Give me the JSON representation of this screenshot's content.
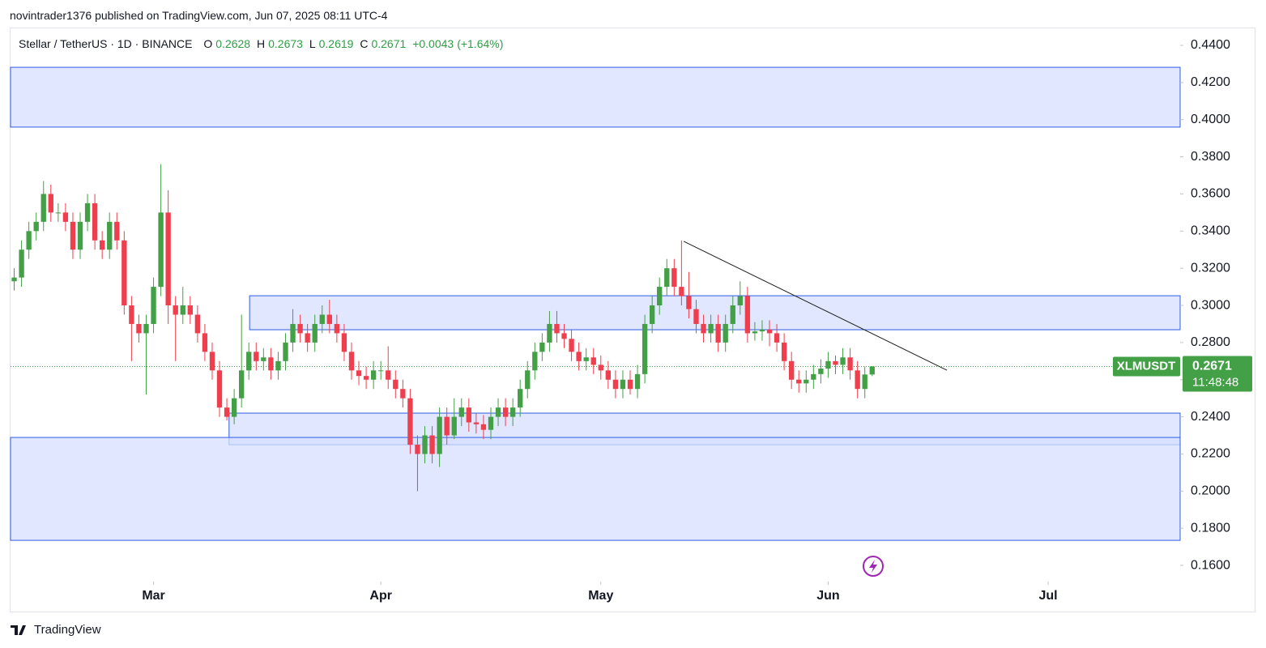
{
  "published": "novintrader1376 published on TradingView.com, Jun 07, 2025 08:11 UTC-4",
  "footer_brand": "TradingView",
  "chart_data": {
    "type": "candlestick",
    "title": "Stellar / TetherUS · 1D · BINANCE",
    "ohlc_labels": [
      "O",
      "H",
      "L",
      "C"
    ],
    "change": "+0.0043",
    "change_pct": "(+1.64%)",
    "symbol": "XLMUSDT",
    "countdown": "11:48:48",
    "colors": {
      "up": "#43a047",
      "down": "#ef3e4e",
      "zone_fill": "#d6dfff",
      "zone_stroke": "#2f5ce6",
      "line": "#1e1e1e"
    },
    "xlim": [
      -0.5,
      159
    ],
    "xticks": [
      {
        "value": 19,
        "label": "Mar"
      },
      {
        "value": 50,
        "label": "Apr"
      },
      {
        "value": 80,
        "label": "May"
      },
      {
        "value": 111,
        "label": "Jun"
      },
      {
        "value": 141,
        "label": "Jul"
      }
    ],
    "ylim": [
      0.1513,
      0.4496
    ],
    "yticks": [
      {
        "value": 0.16,
        "label": "0.1600"
      },
      {
        "value": 0.18,
        "label": "0.1800"
      },
      {
        "value": 0.2,
        "label": "0.2000"
      },
      {
        "value": 0.22,
        "label": "0.2200"
      },
      {
        "value": 0.24,
        "label": "0.2400"
      },
      {
        "value": 0.26,
        "label": "0.2600"
      },
      {
        "value": 0.28,
        "label": "0.2800"
      },
      {
        "value": 0.3,
        "label": "0.3000"
      },
      {
        "value": 0.32,
        "label": "0.3200"
      },
      {
        "value": 0.34,
        "label": "0.3400"
      },
      {
        "value": 0.36,
        "label": "0.3600"
      },
      {
        "value": 0.38,
        "label": "0.3800"
      },
      {
        "value": 0.4,
        "label": "0.4000"
      },
      {
        "value": 0.42,
        "label": "0.4200"
      },
      {
        "value": 0.44,
        "label": "0.4400"
      }
    ],
    "grid": false,
    "open": [
      0.313,
      0.315,
      0.33,
      0.34,
      0.345,
      0.36,
      0.35,
      0.35,
      0.345,
      0.33,
      0.345,
      0.355,
      0.335,
      0.33,
      0.345,
      0.335,
      0.3,
      0.29,
      0.285,
      0.29,
      0.31,
      0.35,
      0.3,
      0.295,
      0.3,
      0.295,
      0.285,
      0.275,
      0.265,
      0.245,
      0.24,
      0.25,
      0.265,
      0.275,
      0.27,
      0.272,
      0.265,
      0.27,
      0.28,
      0.29,
      0.285,
      0.28,
      0.29,
      0.295,
      0.29,
      0.285,
      0.275,
      0.265,
      0.262,
      0.26,
      0.265,
      0.265,
      0.26,
      0.255,
      0.25,
      0.225,
      0.22,
      0.23,
      0.22,
      0.24,
      0.23,
      0.24,
      0.245,
      0.237,
      0.236,
      0.233,
      0.24,
      0.245,
      0.24,
      0.245,
      0.255,
      0.265,
      0.275,
      0.28,
      0.29,
      0.285,
      0.282,
      0.275,
      0.27,
      0.272,
      0.268,
      0.265,
      0.26,
      0.255,
      0.26,
      0.255,
      0.263,
      0.29,
      0.3,
      0.31,
      0.32,
      0.31,
      0.305,
      0.298,
      0.29,
      0.285,
      0.29,
      0.28,
      0.29,
      0.3,
      0.305,
      0.285,
      0.286,
      0.287,
      0.285,
      0.28,
      0.27,
      0.26,
      0.258,
      0.26,
      0.263,
      0.266,
      0.27,
      0.268,
      0.272,
      0.265,
      0.255,
      0.2628
    ],
    "high": [
      0.32,
      0.335,
      0.345,
      0.35,
      0.367,
      0.365,
      0.355,
      0.355,
      0.35,
      0.35,
      0.36,
      0.36,
      0.34,
      0.35,
      0.35,
      0.34,
      0.305,
      0.295,
      0.295,
      0.315,
      0.376,
      0.362,
      0.305,
      0.31,
      0.305,
      0.3,
      0.29,
      0.28,
      0.27,
      0.25,
      0.255,
      0.295,
      0.28,
      0.28,
      0.277,
      0.277,
      0.275,
      0.285,
      0.298,
      0.295,
      0.29,
      0.295,
      0.3,
      0.303,
      0.295,
      0.29,
      0.28,
      0.27,
      0.267,
      0.27,
      0.27,
      0.278,
      0.265,
      0.26,
      0.255,
      0.23,
      0.235,
      0.235,
      0.245,
      0.245,
      0.25,
      0.25,
      0.25,
      0.242,
      0.241,
      0.245,
      0.25,
      0.25,
      0.25,
      0.26,
      0.27,
      0.28,
      0.285,
      0.297,
      0.297,
      0.29,
      0.287,
      0.28,
      0.277,
      0.277,
      0.273,
      0.27,
      0.265,
      0.265,
      0.265,
      0.268,
      0.295,
      0.305,
      0.315,
      0.325,
      0.325,
      0.335,
      0.318,
      0.303,
      0.295,
      0.295,
      0.295,
      0.295,
      0.305,
      0.313,
      0.31,
      0.291,
      0.292,
      0.292,
      0.29,
      0.285,
      0.275,
      0.265,
      0.265,
      0.268,
      0.271,
      0.275,
      0.273,
      0.277,
      0.277,
      0.27,
      0.267,
      0.2673
    ],
    "low": [
      0.308,
      0.31,
      0.325,
      0.335,
      0.34,
      0.345,
      0.345,
      0.34,
      0.325,
      0.325,
      0.34,
      0.33,
      0.325,
      0.325,
      0.33,
      0.295,
      0.27,
      0.28,
      0.252,
      0.285,
      0.305,
      0.29,
      0.27,
      0.29,
      0.29,
      0.28,
      0.27,
      0.26,
      0.24,
      0.238,
      0.236,
      0.245,
      0.26,
      0.265,
      0.265,
      0.26,
      0.26,
      0.265,
      0.275,
      0.28,
      0.275,
      0.275,
      0.285,
      0.285,
      0.28,
      0.27,
      0.26,
      0.257,
      0.255,
      0.255,
      0.26,
      0.255,
      0.25,
      0.245,
      0.22,
      0.2,
      0.215,
      0.215,
      0.213,
      0.225,
      0.228,
      0.235,
      0.232,
      0.231,
      0.228,
      0.228,
      0.235,
      0.235,
      0.235,
      0.24,
      0.25,
      0.26,
      0.27,
      0.275,
      0.28,
      0.277,
      0.27,
      0.265,
      0.265,
      0.263,
      0.26,
      0.255,
      0.25,
      0.25,
      0.252,
      0.25,
      0.258,
      0.285,
      0.295,
      0.305,
      0.305,
      0.3,
      0.293,
      0.285,
      0.28,
      0.28,
      0.275,
      0.275,
      0.285,
      0.295,
      0.28,
      0.281,
      0.281,
      0.278,
      0.275,
      0.265,
      0.255,
      0.253,
      0.253,
      0.255,
      0.258,
      0.261,
      0.263,
      0.263,
      0.26,
      0.25,
      0.25,
      0.2619
    ],
    "close": [
      0.315,
      0.33,
      0.34,
      0.345,
      0.36,
      0.35,
      0.35,
      0.345,
      0.33,
      0.345,
      0.355,
      0.335,
      0.33,
      0.345,
      0.335,
      0.3,
      0.29,
      0.285,
      0.29,
      0.31,
      0.35,
      0.3,
      0.295,
      0.3,
      0.295,
      0.285,
      0.275,
      0.265,
      0.245,
      0.24,
      0.25,
      0.265,
      0.275,
      0.27,
      0.272,
      0.265,
      0.27,
      0.28,
      0.29,
      0.285,
      0.28,
      0.29,
      0.295,
      0.29,
      0.285,
      0.275,
      0.265,
      0.262,
      0.26,
      0.265,
      0.265,
      0.26,
      0.255,
      0.25,
      0.225,
      0.22,
      0.23,
      0.22,
      0.24,
      0.23,
      0.24,
      0.245,
      0.237,
      0.236,
      0.233,
      0.24,
      0.245,
      0.24,
      0.245,
      0.255,
      0.265,
      0.275,
      0.28,
      0.29,
      0.285,
      0.282,
      0.275,
      0.27,
      0.272,
      0.268,
      0.265,
      0.26,
      0.255,
      0.26,
      0.255,
      0.263,
      0.29,
      0.3,
      0.31,
      0.32,
      0.31,
      0.305,
      0.298,
      0.29,
      0.285,
      0.29,
      0.28,
      0.29,
      0.3,
      0.305,
      0.285,
      0.286,
      0.287,
      0.285,
      0.28,
      0.27,
      0.26,
      0.258,
      0.26,
      0.263,
      0.266,
      0.27,
      0.268,
      0.272,
      0.265,
      0.255,
      0.2628,
      0.2671
    ],
    "zones": [
      {
        "top": 0.4282,
        "bottom": 0.396,
        "start": -0.5
      },
      {
        "top": 0.3052,
        "bottom": 0.2869,
        "start": 32.1
      },
      {
        "top": 0.242,
        "bottom": 0.225,
        "start": 29.3
      },
      {
        "top": 0.2289,
        "bottom": 0.1735,
        "start": -0.5
      }
    ],
    "trendline": {
      "x": [
        91.3,
        127.2
      ],
      "y": [
        0.3345,
        0.2651
      ]
    }
  }
}
